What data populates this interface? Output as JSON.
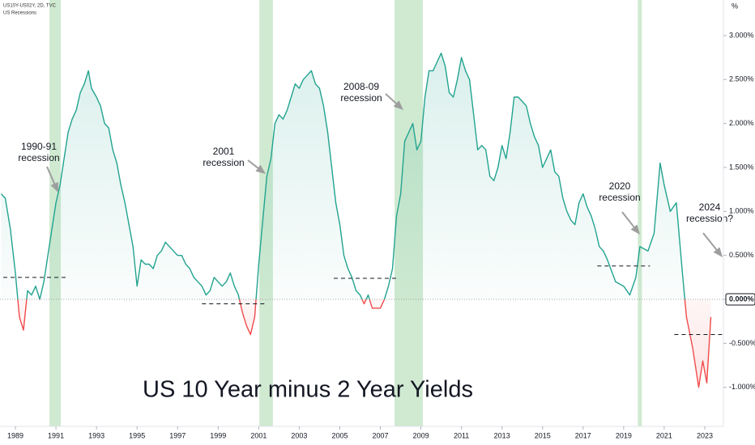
{
  "chart_data": {
    "type": "line",
    "title": "US 10 Year minus 2 Year Yields",
    "symbol": "US10Y-US02Y, 2D, TVC",
    "y_unit": "%",
    "xlim": [
      1988.24,
      2023.92
    ],
    "ylim": [
      -1.444,
      3.404
    ],
    "xticks": [
      1989,
      1991,
      1993,
      1995,
      1997,
      1999,
      2001,
      2003,
      2005,
      2007,
      2009,
      2011,
      2013,
      2015,
      2017,
      2019,
      2021,
      2023
    ],
    "yticks": [
      {
        "value": -1,
        "label": "-1.000%"
      },
      {
        "value": -0.5,
        "label": "-0.500%"
      },
      {
        "value": 0,
        "label": "0.000%"
      },
      {
        "value": 0.5,
        "label": "0.500%"
      },
      {
        "value": 1,
        "label": "1.000%"
      },
      {
        "value": 1.5,
        "label": "1.500%"
      },
      {
        "value": 2,
        "label": "2.000%"
      },
      {
        "value": 2.5,
        "label": "2.500%"
      },
      {
        "value": 3,
        "label": "3.000%"
      }
    ],
    "color_positive": "#22a38f",
    "color_negative": "#f04a4a",
    "recessions": {
      "name": "US Recessions",
      "color": "#c8e6c9",
      "periods": [
        [
          1990.68,
          1991.24
        ],
        [
          2001.03,
          2001.7
        ],
        [
          2007.7,
          2009.1
        ],
        [
          2019.7,
          2019.9
        ]
      ]
    },
    "series": [
      {
        "name": "US10Y-US02Y",
        "x": [
          1988.3,
          1988.5,
          1988.75,
          1989.0,
          1989.2,
          1989.4,
          1989.6,
          1989.8,
          1990.0,
          1990.2,
          1990.4,
          1990.6,
          1990.8,
          1991.0,
          1991.2,
          1991.4,
          1991.6,
          1991.8,
          1992.0,
          1992.2,
          1992.4,
          1992.6,
          1992.75,
          1993.0,
          1993.2,
          1993.4,
          1993.6,
          1993.8,
          1994.0,
          1994.2,
          1994.4,
          1994.6,
          1994.8,
          1995.0,
          1995.2,
          1995.4,
          1995.6,
          1995.8,
          1996.0,
          1996.2,
          1996.4,
          1996.6,
          1996.8,
          1997.0,
          1997.2,
          1997.4,
          1997.6,
          1997.8,
          1998.0,
          1998.2,
          1998.4,
          1998.6,
          1998.8,
          1999.0,
          1999.2,
          1999.4,
          1999.6,
          1999.8,
          2000.0,
          2000.2,
          2000.4,
          2000.6,
          2000.8,
          2001.0,
          2001.2,
          2001.4,
          2001.6,
          2001.8,
          2002.0,
          2002.2,
          2002.4,
          2002.6,
          2002.8,
          2003.0,
          2003.2,
          2003.4,
          2003.6,
          2003.8,
          2004.0,
          2004.2,
          2004.4,
          2004.6,
          2004.8,
          2005.0,
          2005.2,
          2005.4,
          2005.6,
          2005.8,
          2006.0,
          2006.2,
          2006.4,
          2006.6,
          2006.8,
          2007.0,
          2007.2,
          2007.4,
          2007.6,
          2007.8,
          2008.0,
          2008.2,
          2008.4,
          2008.6,
          2008.8,
          2009.0,
          2009.2,
          2009.4,
          2009.6,
          2009.8,
          2010.0,
          2010.2,
          2010.4,
          2010.6,
          2010.8,
          2011.0,
          2011.2,
          2011.4,
          2011.6,
          2011.8,
          2012.0,
          2012.2,
          2012.4,
          2012.6,
          2012.8,
          2013.0,
          2013.2,
          2013.4,
          2013.6,
          2013.8,
          2014.0,
          2014.2,
          2014.4,
          2014.6,
          2014.8,
          2015.0,
          2015.2,
          2015.4,
          2015.6,
          2015.8,
          2016.0,
          2016.2,
          2016.4,
          2016.6,
          2016.8,
          2017.0,
          2017.2,
          2017.4,
          2017.6,
          2017.8,
          2018.0,
          2018.2,
          2018.6,
          2019.0,
          2019.3,
          2019.6,
          2019.8,
          2020.2,
          2020.5,
          2020.8,
          2021.0,
          2021.3,
          2021.6,
          2021.9,
          2022.1,
          2022.4,
          2022.7,
          2022.9,
          2023.1,
          2023.3
        ],
        "values": [
          1.2,
          1.15,
          0.8,
          0.3,
          -0.2,
          -0.35,
          0.1,
          0.05,
          0.15,
          0.0,
          0.2,
          0.5,
          0.8,
          1.1,
          1.3,
          1.6,
          1.9,
          2.05,
          2.15,
          2.35,
          2.45,
          2.6,
          2.4,
          2.3,
          2.2,
          2.0,
          1.95,
          1.7,
          1.55,
          1.3,
          1.1,
          0.85,
          0.6,
          0.15,
          0.45,
          0.4,
          0.4,
          0.35,
          0.5,
          0.55,
          0.65,
          0.6,
          0.55,
          0.5,
          0.5,
          0.4,
          0.35,
          0.25,
          0.2,
          0.15,
          0.05,
          0.1,
          0.25,
          0.2,
          0.15,
          0.2,
          0.3,
          0.15,
          0.05,
          -0.15,
          -0.3,
          -0.4,
          -0.2,
          0.4,
          0.9,
          1.4,
          1.6,
          2.0,
          2.1,
          2.05,
          2.15,
          2.3,
          2.45,
          2.4,
          2.5,
          2.55,
          2.6,
          2.45,
          2.4,
          2.2,
          1.9,
          1.5,
          1.1,
          0.85,
          0.5,
          0.35,
          0.25,
          0.1,
          0.05,
          -0.05,
          0.05,
          -0.1,
          -0.1,
          -0.1,
          0.0,
          0.15,
          0.35,
          0.95,
          1.2,
          1.8,
          1.9,
          2.0,
          1.7,
          1.8,
          2.3,
          2.6,
          2.6,
          2.7,
          2.8,
          2.65,
          2.35,
          2.3,
          2.5,
          2.75,
          2.6,
          2.5,
          2.1,
          1.7,
          1.75,
          1.7,
          1.4,
          1.35,
          1.5,
          1.75,
          1.6,
          1.9,
          2.3,
          2.3,
          2.25,
          2.2,
          2.0,
          1.85,
          1.75,
          1.5,
          1.6,
          1.7,
          1.45,
          1.4,
          1.15,
          1.0,
          0.9,
          0.85,
          1.1,
          1.2,
          1.05,
          0.95,
          0.8,
          0.6,
          0.55,
          0.45,
          0.2,
          0.15,
          0.05,
          0.25,
          0.6,
          0.55,
          0.75,
          1.55,
          1.3,
          1.0,
          1.1,
          0.3,
          -0.2,
          -0.55,
          -1.0,
          -0.7,
          -0.95,
          -0.2
        ]
      }
    ],
    "levels": [
      {
        "x": [
          1988.4,
          1991.5
        ],
        "value": 0.25
      },
      {
        "x": [
          1998.2,
          2001.3
        ],
        "value": -0.05
      },
      {
        "x": [
          2004.7,
          2007.9
        ],
        "value": 0.24
      },
      {
        "x": [
          2017.7,
          2020.3
        ],
        "value": 0.38
      },
      {
        "x": [
          2021.5,
          2024.0
        ],
        "value": -0.4
      }
    ],
    "annotations": [
      {
        "lines": [
          "1990-91",
          "recession"
        ]
      },
      {
        "lines": [
          "2001",
          "recession"
        ]
      },
      {
        "lines": [
          "2008-09",
          "recession"
        ]
      },
      {
        "lines": [
          "2020",
          "recession"
        ]
      },
      {
        "lines": [
          "2024",
          "recession?"
        ]
      }
    ]
  }
}
